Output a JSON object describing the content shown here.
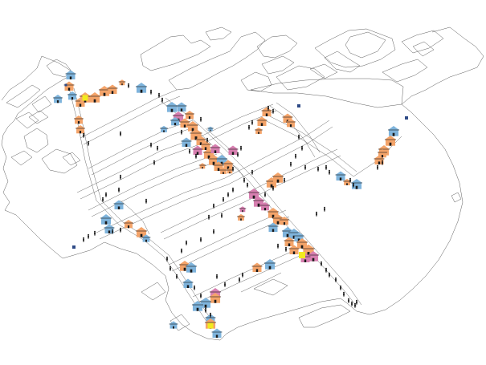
{
  "map": {
    "kind": "isometric street plan",
    "colors": {
      "background": "#ffffff",
      "outline": "#4a4a4a",
      "house_orange": "#f4a46a",
      "house_blue": "#7fb4dc",
      "house_pink": "#d77fb0",
      "marker_yellow": "#f2ea1f",
      "marker_navy": "#2e4a86",
      "person": "#1a1a1a"
    },
    "legend": null,
    "labels": []
  }
}
